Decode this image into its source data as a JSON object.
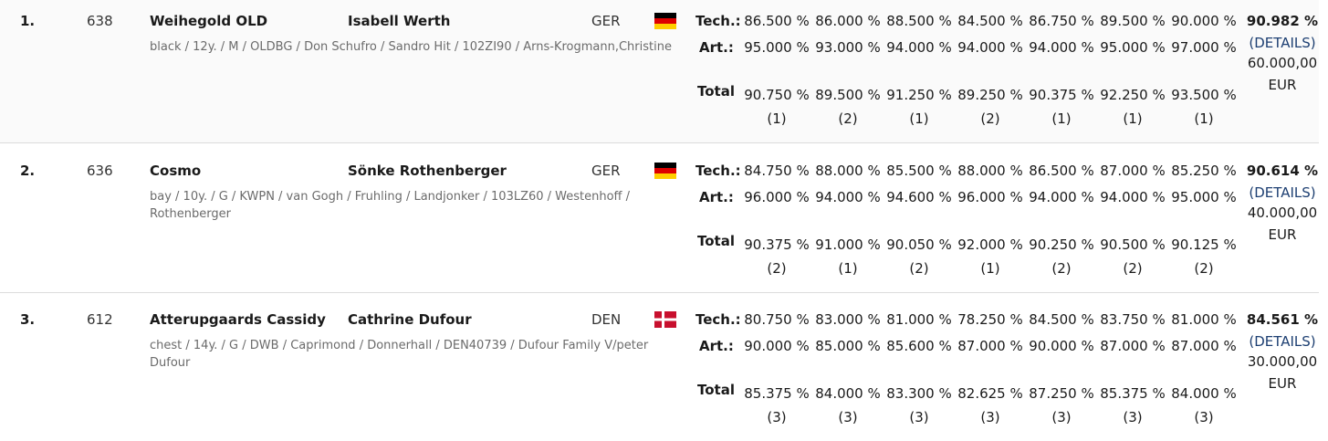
{
  "labels": {
    "tech": "Tech.:",
    "art": "Art.:",
    "total": "Total",
    "details": "DETAILS"
  },
  "rows": [
    {
      "rank": "1.",
      "number": "638",
      "horse": "Weihegold OLD",
      "rider": "Isabell Werth",
      "nation": "GER",
      "flag": "germany-flag",
      "desc": "black / 12y. / M / OLDBG / Don Schufro / Sandro Hit / 102ZI90 / Arns-Krogmann,Christine",
      "tech": [
        "86.500 %",
        "86.000 %",
        "88.500 %",
        "84.500 %",
        "86.750 %",
        "89.500 %",
        "90.000 %"
      ],
      "art": [
        "95.000 %",
        "93.000 %",
        "94.000 %",
        "94.000 %",
        "94.000 %",
        "95.000 %",
        "97.000 %"
      ],
      "total": [
        "90.750 %",
        "89.500 %",
        "91.250 %",
        "89.250 %",
        "90.375 %",
        "92.250 %",
        "93.500 %"
      ],
      "total_rank": [
        "(1)",
        "(2)",
        "(1)",
        "(2)",
        "(1)",
        "(1)",
        "(1)"
      ],
      "final": "90.982 %",
      "prize": "60.000,00",
      "currency": "EUR"
    },
    {
      "rank": "2.",
      "number": "636",
      "horse": "Cosmo",
      "rider": "Sönke Rothenberger",
      "nation": "GER",
      "flag": "germany-flag",
      "desc": "bay / 10y. / G / KWPN / van Gogh / Fruhling / Landjonker / 103LZ60 / Westenhoff / Rothenberger",
      "tech": [
        "84.750 %",
        "88.000 %",
        "85.500 %",
        "88.000 %",
        "86.500 %",
        "87.000 %",
        "85.250 %"
      ],
      "art": [
        "96.000 %",
        "94.000 %",
        "94.600 %",
        "96.000 %",
        "94.000 %",
        "94.000 %",
        "95.000 %"
      ],
      "total": [
        "90.375 %",
        "91.000 %",
        "90.050 %",
        "92.000 %",
        "90.250 %",
        "90.500 %",
        "90.125 %"
      ],
      "total_rank": [
        "(2)",
        "(1)",
        "(2)",
        "(1)",
        "(2)",
        "(2)",
        "(2)"
      ],
      "final": "90.614 %",
      "prize": "40.000,00",
      "currency": "EUR"
    },
    {
      "rank": "3.",
      "number": "612",
      "horse": "Atterupgaards Cassidy",
      "rider": "Cathrine Dufour",
      "nation": "DEN",
      "flag": "denmark-flag",
      "desc": "chest / 14y. / G / DWB / Caprimond / Donnerhall / DEN40739 / Dufour Family V/peter Dufour",
      "tech": [
        "80.750 %",
        "83.000 %",
        "81.000 %",
        "78.250 %",
        "84.500 %",
        "83.750 %",
        "81.000 %"
      ],
      "art": [
        "90.000 %",
        "85.000 %",
        "85.600 %",
        "87.000 %",
        "90.000 %",
        "87.000 %",
        "87.000 %"
      ],
      "total": [
        "85.375 %",
        "84.000 %",
        "83.300 %",
        "82.625 %",
        "87.250 %",
        "85.375 %",
        "84.000 %"
      ],
      "total_rank": [
        "(3)",
        "(3)",
        "(3)",
        "(3)",
        "(3)",
        "(3)",
        "(3)"
      ],
      "final": "84.561 %",
      "prize": "30.000,00",
      "currency": "EUR"
    }
  ]
}
